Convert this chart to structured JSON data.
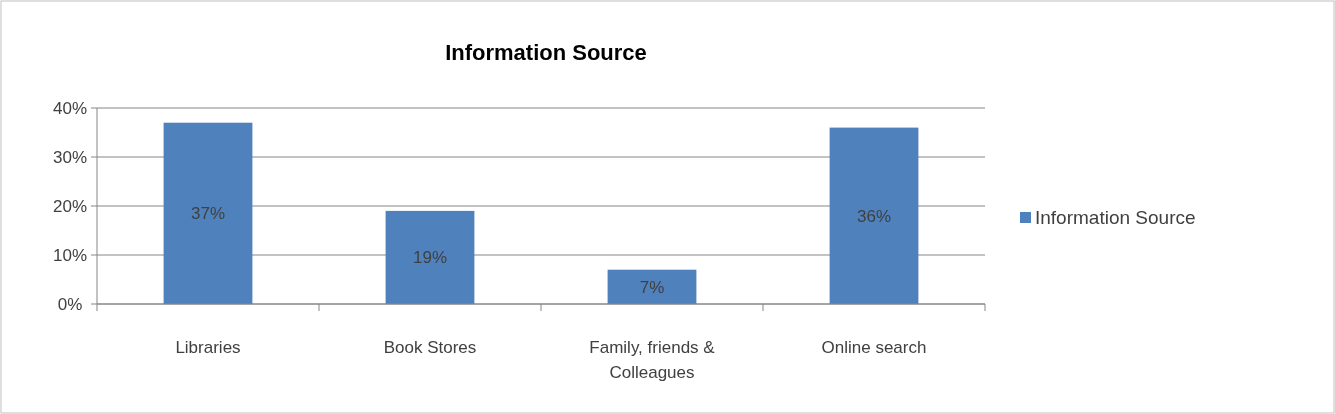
{
  "chart_data": {
    "type": "bar",
    "title": "Information Source",
    "categories": [
      "Libraries",
      "Book Stores",
      "Family, friends & Colleagues",
      "Online search"
    ],
    "series": [
      {
        "name": "Information Source",
        "color": "#4f81bd",
        "values": [
          37,
          19,
          7,
          36
        ],
        "value_labels": [
          "37%",
          "19%",
          "7%",
          "36%"
        ]
      }
    ],
    "ylim": [
      0,
      40
    ],
    "yticks": [
      {
        "value": 0,
        "label": "0%"
      },
      {
        "value": 10,
        "label": "10%"
      },
      {
        "value": 20,
        "label": "20%"
      },
      {
        "value": 30,
        "label": "30%"
      },
      {
        "value": 40,
        "label": "40%"
      }
    ],
    "grid": "y",
    "legend": "right"
  }
}
